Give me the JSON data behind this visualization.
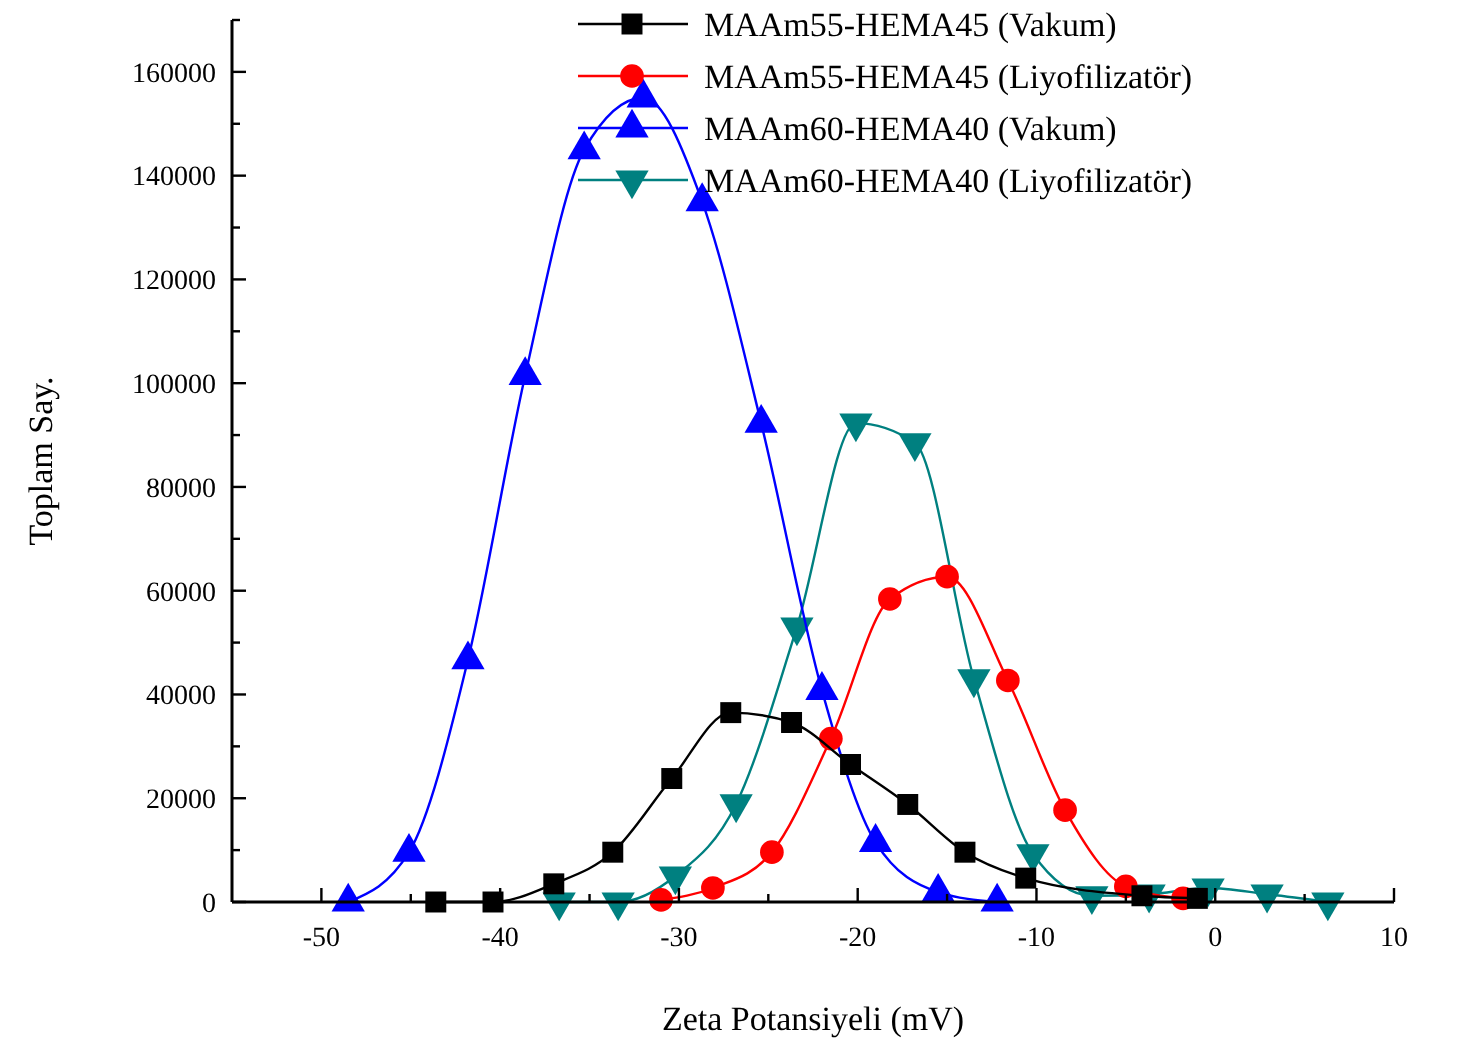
{
  "chart_data": {
    "type": "line",
    "xlabel": "Zeta Potansiyeli (mV)",
    "ylabel": "Toplam Say.",
    "xlim": [
      -55,
      10
    ],
    "xticks": [
      -50,
      {
        "value": -45,
        "label": null
      },
      -40,
      {
        "value": -35,
        "label": null
      },
      -30,
      {
        "value": -25,
        "label": null
      },
      -20,
      {
        "value": -15,
        "label": null
      },
      -10,
      {
        "value": -5,
        "label": null
      },
      0,
      {
        "value": 5,
        "label": null
      },
      10
    ],
    "ylim": [
      0,
      170000
    ],
    "yticks": [
      0,
      {
        "value": 10000,
        "label": null
      },
      20000,
      {
        "value": 30000,
        "label": null
      },
      40000,
      {
        "value": 50000,
        "label": null
      },
      60000,
      {
        "value": 70000,
        "label": null
      },
      80000,
      {
        "value": 90000,
        "label": null
      },
      100000,
      {
        "value": 110000,
        "label": null
      },
      120000,
      {
        "value": 130000,
        "label": null
      },
      140000,
      {
        "value": 150000,
        "label": null
      },
      160000,
      {
        "value": 170000,
        "label": null
      }
    ],
    "grid": false,
    "legend": "top right",
    "line_style": "solid",
    "series": [
      {
        "name": "MAAm55-HEMA45 (Vakum)",
        "color": "#000000",
        "marker": "square",
        "x": [
          -43.6,
          -40.4,
          -37.0,
          -33.7,
          -30.4,
          -27.1,
          -23.7,
          -20.4,
          -17.2,
          -14.0,
          -10.6,
          -4.1,
          -1.0
        ],
        "values": [
          0,
          0,
          3500,
          9600,
          23800,
          36500,
          34600,
          26500,
          18800,
          9600,
          4600,
          1200,
          700
        ]
      },
      {
        "name": "MAAm55-HEMA45 (Liyofilizatör)",
        "color": "#ff0000",
        "marker": "circle",
        "x": [
          -31.0,
          -28.1,
          -24.8,
          -21.5,
          -18.2,
          -15.0,
          -11.6,
          -8.4,
          -5.0,
          -1.8
        ],
        "values": [
          400,
          2700,
          9600,
          31500,
          58400,
          62700,
          42700,
          17700,
          3000,
          700
        ]
      },
      {
        "name": "MAAm60-HEMA40 (Vakum)",
        "color": "#0000ff",
        "marker": "triangle",
        "x": [
          -48.5,
          -45.1,
          -41.8,
          -38.6,
          -35.3,
          -32.0,
          -28.7,
          -25.4,
          -22.0,
          -19.0,
          -15.5,
          -12.2
        ],
        "values": [
          0,
          9600,
          46700,
          101500,
          145000,
          155000,
          135000,
          92300,
          40800,
          11500,
          1900,
          0
        ]
      },
      {
        "name": "MAAm60-HEMA40 (Liyofilizatör)",
        "color": "#008080",
        "marker": "triangle-down",
        "x": [
          -36.7,
          -33.4,
          -30.2,
          -26.8,
          -23.4,
          -20.1,
          -16.8,
          -13.5,
          -10.2,
          -6.9,
          -3.7,
          -0.4,
          2.9,
          6.3
        ],
        "values": [
          0,
          0,
          5000,
          18900,
          53000,
          92300,
          88500,
          43000,
          9300,
          1200,
          1500,
          2700,
          1500,
          0
        ]
      }
    ]
  }
}
